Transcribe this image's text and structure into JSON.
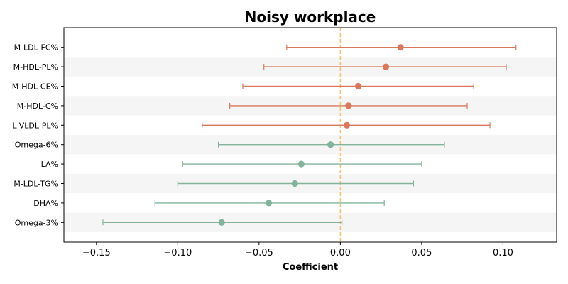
{
  "chart_data": {
    "type": "forest",
    "title": "Noisy workplace",
    "xlabel": "Coefficient",
    "ylabel": "",
    "xlim": [
      -0.17,
      0.133
    ],
    "x_ticks": [
      -0.15,
      -0.1,
      -0.05,
      0.0,
      0.05,
      0.1
    ],
    "x_tick_labels": [
      "−0.15",
      "−0.10",
      "−0.05",
      "0.00",
      "0.05",
      "0.10"
    ],
    "reference_line": 0.0,
    "reference_line_color": "#f5c27a",
    "stripe_color": "#f5f5f5",
    "positive_color": "#d9785c",
    "negative_color": "#83b49b",
    "items": [
      {
        "label": "M-LDL-FC%",
        "coef": 0.037,
        "lower": -0.033,
        "upper": 0.108
      },
      {
        "label": "M-HDL-PL%",
        "coef": 0.028,
        "lower": -0.047,
        "upper": 0.102
      },
      {
        "label": "M-HDL-CE%",
        "coef": 0.011,
        "lower": -0.06,
        "upper": 0.082
      },
      {
        "label": "M-HDL-C%",
        "coef": 0.005,
        "lower": -0.068,
        "upper": 0.078
      },
      {
        "label": "L-VLDL-PL%",
        "coef": 0.004,
        "lower": -0.085,
        "upper": 0.092
      },
      {
        "label": "Omega-6%",
        "coef": -0.006,
        "lower": -0.075,
        "upper": 0.064
      },
      {
        "label": "LA%",
        "coef": -0.024,
        "lower": -0.097,
        "upper": 0.05
      },
      {
        "label": "M-LDL-TG%",
        "coef": -0.028,
        "lower": -0.1,
        "upper": 0.045
      },
      {
        "label": "DHA%",
        "coef": -0.044,
        "lower": -0.114,
        "upper": 0.027
      },
      {
        "label": "Omega-3%",
        "coef": -0.073,
        "lower": -0.146,
        "upper": 0.001
      }
    ]
  }
}
